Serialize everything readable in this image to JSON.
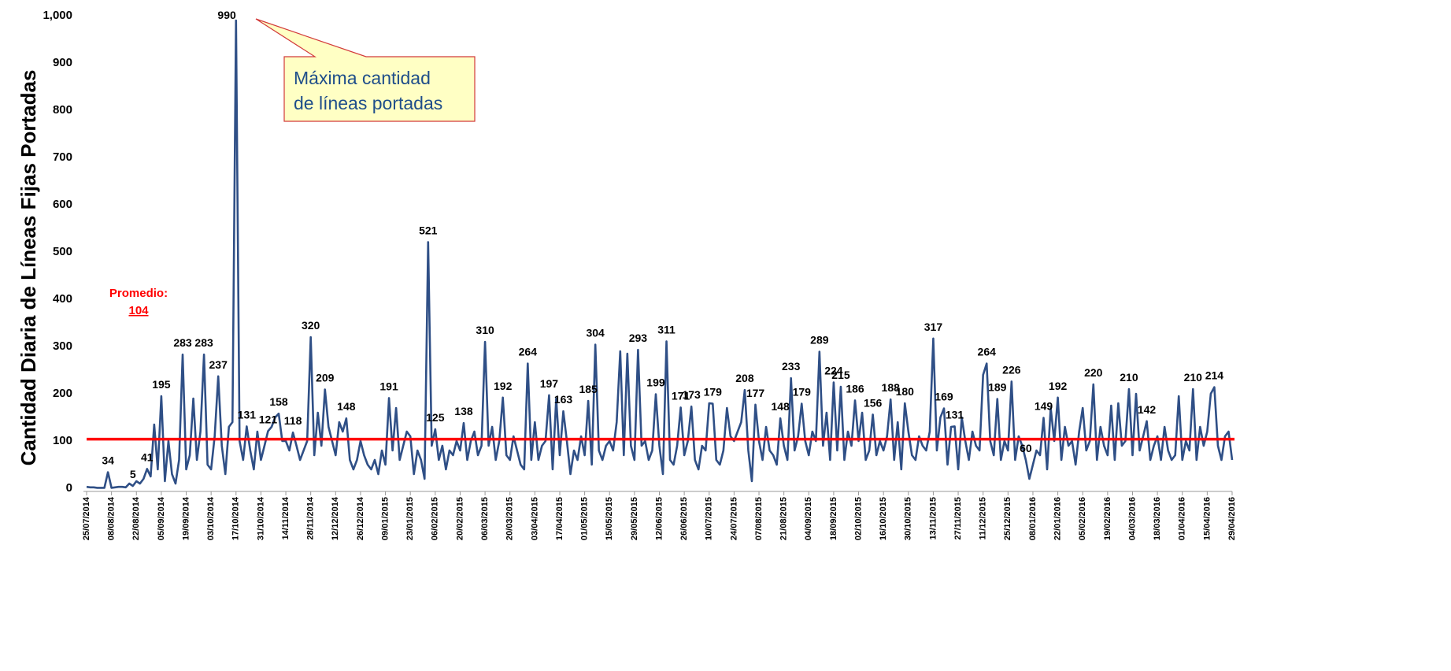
{
  "chart_data": {
    "type": "line",
    "y_axis_label": "Cantidad Diaria de Líneas Fijas Portadas",
    "color": "#2f4f86",
    "ylim": [
      0,
      1000
    ],
    "yticks": [
      0,
      100,
      200,
      300,
      400,
      500,
      600,
      700,
      800,
      900,
      {
        "value": 1000,
        "label": "1,000"
      }
    ],
    "average": 104,
    "average_label": "Promedio:",
    "average_color": "#ff0000",
    "highlight_color": "#ff0000",
    "annotation": [
      "Máxima cantidad",
      "de líneas portadas"
    ],
    "categories": [
      "25/07/2014",
      null,
      null,
      null,
      null,
      null,
      null,
      "08/08/2014",
      null,
      null,
      null,
      null,
      null,
      null,
      "22/08/2014",
      null,
      null,
      null,
      null,
      null,
      null,
      "05/09/2014",
      null,
      null,
      null,
      null,
      null,
      null,
      "19/09/2014",
      null,
      null,
      null,
      null,
      null,
      null,
      "03/10/2014",
      null,
      null,
      null,
      null,
      null,
      null,
      "17/10/2014",
      null,
      null,
      null,
      null,
      null,
      null,
      "31/10/2014",
      null,
      null,
      null,
      null,
      null,
      null,
      "14/11/2014",
      null,
      null,
      null,
      null,
      null,
      null,
      "28/11/2014",
      null,
      null,
      null,
      null,
      null,
      null,
      "12/12/2014",
      null,
      null,
      null,
      null,
      null,
      null,
      "26/12/2014",
      null,
      null,
      null,
      null,
      null,
      null,
      "09/01/2015",
      null,
      null,
      null,
      null,
      null,
      null,
      "23/01/2015",
      null,
      null,
      null,
      null,
      null,
      null,
      "06/02/2015",
      null,
      null,
      null,
      null,
      null,
      null,
      "20/02/2015",
      null,
      null,
      null,
      null,
      null,
      null,
      "06/03/2015",
      null,
      null,
      null,
      null,
      null,
      null,
      "20/03/2015",
      null,
      null,
      null,
      null,
      null,
      null,
      "03/04/2015",
      null,
      null,
      null,
      null,
      null,
      null,
      "17/04/2015",
      null,
      null,
      null,
      null,
      null,
      null,
      "01/05/2015",
      null,
      null,
      null,
      null,
      null,
      null,
      "15/05/2015",
      null,
      null,
      null,
      null,
      null,
      null,
      "29/05/2015",
      null,
      null,
      null,
      null,
      null,
      null,
      "12/06/2015",
      null,
      null,
      null,
      null,
      null,
      null,
      "26/06/2015",
      null,
      null,
      null,
      null,
      null,
      null,
      "10/07/2015",
      null,
      null,
      null,
      null,
      null,
      null,
      "24/07/2015",
      null,
      null,
      null,
      null,
      null,
      null,
      "07/08/2015",
      null,
      null,
      null,
      null,
      null,
      null,
      "21/08/2015",
      null,
      null,
      null,
      null,
      null,
      null,
      "04/09/2015",
      null,
      null,
      null,
      null,
      null,
      null,
      "18/09/2015",
      null,
      null,
      null,
      null,
      null,
      null,
      "02/10/2015",
      null,
      null,
      null,
      null,
      null,
      null,
      "16/10/2015",
      null,
      null,
      null,
      null,
      null,
      null,
      "30/10/2015",
      null,
      null,
      null,
      null,
      null,
      null,
      "13/11/2015",
      null,
      null,
      null,
      null,
      null,
      null,
      "27/11/2015",
      null,
      null,
      null,
      null,
      null,
      null,
      "11/12/2015",
      null,
      null,
      null,
      null,
      null,
      null,
      "25/12/2015",
      null,
      null,
      null,
      null,
      null,
      null,
      "08/01/2016",
      null,
      null,
      null,
      null,
      null,
      null,
      "22/01/2016",
      null,
      null,
      null,
      null,
      null,
      null,
      "05/02/2016",
      null,
      null,
      null,
      null,
      null,
      null,
      "19/02/2016",
      null,
      null,
      null,
      null,
      null,
      null,
      "04/03/2016",
      null,
      null,
      null,
      null,
      null,
      null,
      "18/03/2016",
      null,
      null,
      null,
      null,
      null,
      null,
      "01/04/2016",
      null,
      null,
      null,
      null,
      null,
      null,
      "15/04/2016",
      null,
      null,
      null,
      null,
      null,
      null,
      "29/04/2016"
    ],
    "values": [
      3,
      2,
      2,
      1,
      1,
      1,
      34,
      1,
      2,
      3,
      3,
      2,
      10,
      5,
      15,
      10,
      20,
      41,
      25,
      135,
      40,
      195,
      15,
      100,
      30,
      10,
      60,
      283,
      40,
      70,
      190,
      60,
      120,
      283,
      50,
      40,
      110,
      237,
      90,
      30,
      130,
      140,
      990,
      100,
      60,
      131,
      80,
      40,
      120,
      60,
      90,
      121,
      130,
      150,
      158,
      100,
      100,
      80,
      118,
      90,
      60,
      80,
      100,
      320,
      70,
      160,
      90,
      209,
      130,
      100,
      70,
      140,
      120,
      148,
      60,
      40,
      60,
      100,
      70,
      50,
      40,
      60,
      30,
      80,
      50,
      191,
      80,
      170,
      60,
      90,
      120,
      110,
      30,
      80,
      60,
      20,
      521,
      90,
      125,
      60,
      90,
      40,
      80,
      70,
      100,
      80,
      138,
      60,
      100,
      120,
      70,
      90,
      310,
      90,
      130,
      60,
      100,
      192,
      70,
      60,
      110,
      80,
      50,
      40,
      264,
      60,
      140,
      60,
      90,
      100,
      197,
      40,
      190,
      70,
      163,
      100,
      30,
      80,
      60,
      110,
      70,
      185,
      50,
      304,
      80,
      60,
      90,
      100,
      80,
      140,
      290,
      70,
      285,
      90,
      60,
      293,
      90,
      100,
      60,
      80,
      199,
      90,
      30,
      311,
      60,
      50,
      90,
      171,
      70,
      100,
      173,
      60,
      40,
      90,
      80,
      180,
      179,
      60,
      50,
      80,
      170,
      110,
      100,
      120,
      140,
      208,
      80,
      15,
      177,
      100,
      60,
      130,
      80,
      70,
      50,
      148,
      90,
      60,
      233,
      80,
      110,
      179,
      100,
      70,
      120,
      100,
      289,
      90,
      160,
      60,
      224,
      80,
      215,
      60,
      120,
      90,
      186,
      100,
      160,
      60,
      80,
      156,
      70,
      100,
      80,
      110,
      188,
      60,
      140,
      40,
      180,
      120,
      70,
      60,
      110,
      90,
      80,
      120,
      317,
      80,
      150,
      169,
      50,
      130,
      131,
      40,
      150,
      100,
      60,
      120,
      90,
      80,
      240,
      264,
      100,
      70,
      189,
      60,
      100,
      80,
      226,
      60,
      110,
      90,
      60,
      20,
      50,
      80,
      70,
      149,
      40,
      170,
      100,
      192,
      60,
      130,
      90,
      100,
      50,
      120,
      170,
      80,
      100,
      220,
      60,
      130,
      90,
      70,
      175,
      60,
      180,
      90,
      100,
      210,
      70,
      200,
      80,
      110,
      142,
      60,
      90,
      110,
      60,
      130,
      80,
      60,
      70,
      195,
      60,
      100,
      80,
      210,
      60,
      130,
      90,
      120,
      200,
      214,
      90,
      60,
      110,
      120,
      60
    ],
    "value_labels": [
      null,
      null,
      null,
      null,
      null,
      null,
      "34",
      null,
      null,
      null,
      null,
      null,
      null,
      "5",
      null,
      null,
      null,
      "41",
      null,
      null,
      null,
      "195",
      null,
      null,
      null,
      null,
      null,
      "283",
      null,
      null,
      null,
      null,
      null,
      "283",
      null,
      null,
      null,
      "237",
      null,
      null,
      null,
      null,
      "990",
      null,
      null,
      "131",
      null,
      null,
      null,
      null,
      null,
      "121",
      null,
      null,
      "158",
      null,
      null,
      null,
      "118",
      null,
      null,
      null,
      null,
      "320",
      null,
      null,
      null,
      "209",
      null,
      null,
      null,
      null,
      null,
      "148",
      null,
      null,
      null,
      null,
      null,
      null,
      null,
      null,
      null,
      null,
      null,
      "191",
      null,
      null,
      null,
      null,
      null,
      null,
      null,
      null,
      null,
      null,
      "521",
      null,
      "125",
      null,
      null,
      null,
      null,
      null,
      null,
      null,
      "138",
      null,
      null,
      null,
      null,
      null,
      "310",
      null,
      null,
      null,
      null,
      "192",
      null,
      null,
      null,
      null,
      null,
      null,
      "264",
      null,
      null,
      null,
      null,
      null,
      "197",
      null,
      null,
      null,
      "163",
      null,
      null,
      null,
      null,
      null,
      null,
      "185",
      null,
      "304",
      null,
      null,
      null,
      null,
      null,
      null,
      null,
      null,
      null,
      null,
      null,
      "293",
      null,
      null,
      null,
      null,
      "199",
      null,
      null,
      "311",
      null,
      null,
      null,
      "171",
      null,
      null,
      "173",
      null,
      null,
      null,
      null,
      null,
      "179",
      null,
      null,
      null,
      null,
      null,
      null,
      null,
      null,
      "208",
      null,
      null,
      "177",
      null,
      null,
      null,
      null,
      null,
      null,
      "148",
      null,
      null,
      "233",
      null,
      null,
      "179",
      null,
      null,
      null,
      null,
      "289",
      null,
      null,
      null,
      "224",
      null,
      "215",
      null,
      null,
      null,
      "186",
      null,
      null,
      null,
      null,
      "156",
      null,
      null,
      null,
      null,
      "188",
      null,
      null,
      null,
      "180",
      null,
      null,
      null,
      null,
      null,
      null,
      null,
      "317",
      null,
      null,
      "169",
      null,
      null,
      "131",
      null,
      null,
      null,
      null,
      null,
      null,
      null,
      null,
      "264",
      null,
      null,
      "189",
      null,
      null,
      null,
      "226",
      null,
      null,
      null,
      "60",
      null,
      null,
      null,
      null,
      "149",
      null,
      null,
      null,
      "192",
      null,
      null,
      null,
      null,
      null,
      null,
      null,
      null,
      null,
      "220",
      null,
      null,
      null,
      null,
      null,
      null,
      null,
      null,
      null,
      "210",
      null,
      null,
      null,
      null,
      "142",
      null,
      null,
      null,
      null,
      null,
      null,
      null,
      null,
      null,
      null,
      null,
      null,
      "210",
      null,
      null,
      null,
      null,
      null,
      "214",
      null,
      null,
      null,
      null,
      null
    ]
  }
}
